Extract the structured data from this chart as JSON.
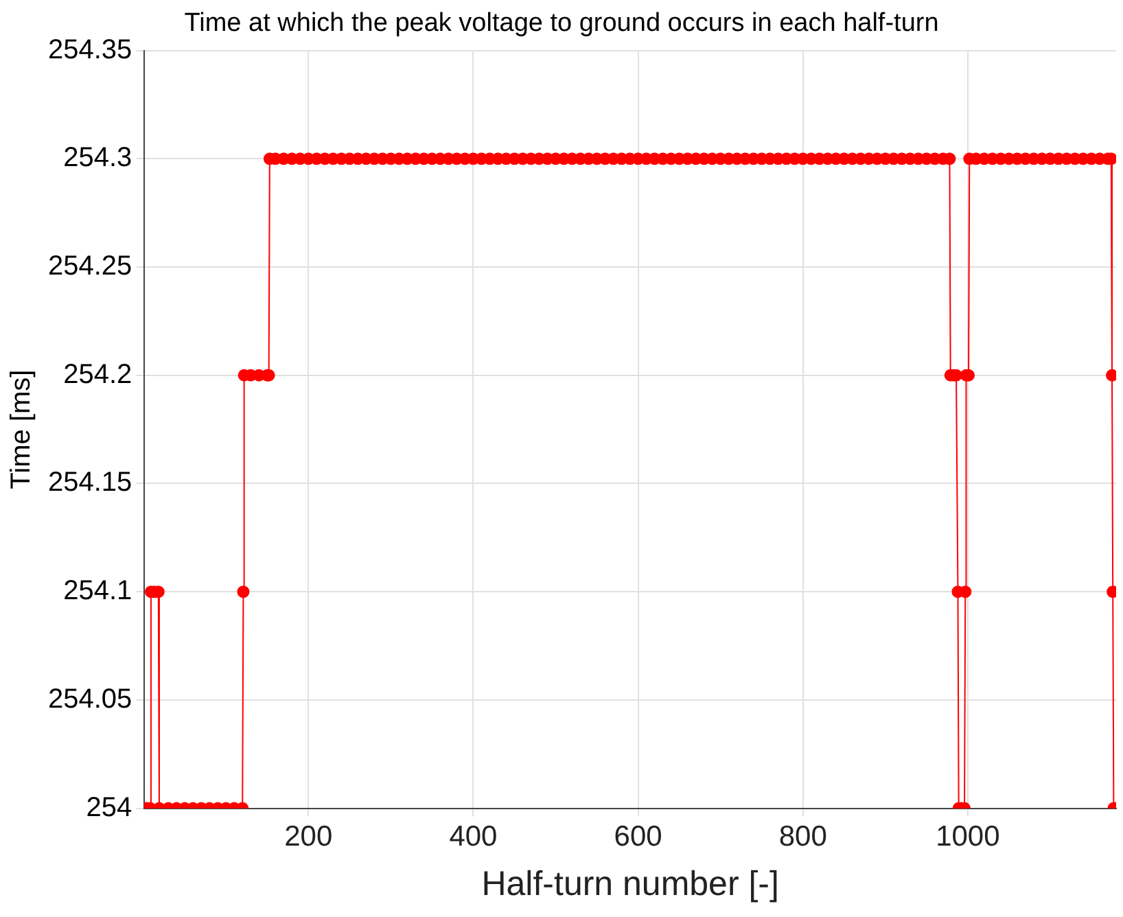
{
  "chart_data": {
    "type": "line",
    "title": "Time at which the peak voltage to ground occurs in each half-turn",
    "xlabel": "Half-turn number [-]",
    "ylabel": "Time [ms]",
    "x": [
      1,
      4,
      8,
      9,
      13,
      18,
      19,
      30,
      40,
      50,
      60,
      70,
      80,
      90,
      100,
      110,
      120,
      121,
      122,
      130,
      140,
      150,
      152,
      153,
      160,
      170,
      180,
      190,
      200,
      210,
      220,
      230,
      240,
      250,
      260,
      270,
      280,
      290,
      300,
      310,
      320,
      330,
      340,
      350,
      360,
      370,
      380,
      390,
      400,
      410,
      420,
      430,
      440,
      450,
      460,
      470,
      480,
      490,
      500,
      510,
      520,
      530,
      540,
      550,
      560,
      570,
      580,
      590,
      600,
      610,
      620,
      630,
      640,
      650,
      660,
      670,
      680,
      690,
      700,
      710,
      720,
      730,
      740,
      750,
      760,
      770,
      780,
      790,
      800,
      810,
      820,
      830,
      840,
      850,
      860,
      870,
      880,
      890,
      900,
      910,
      920,
      930,
      940,
      950,
      960,
      970,
      978,
      979,
      983,
      986,
      988,
      989,
      992,
      996,
      997,
      998,
      1001,
      1002,
      1010,
      1020,
      1030,
      1040,
      1050,
      1060,
      1070,
      1080,
      1090,
      1100,
      1110,
      1120,
      1130,
      1140,
      1150,
      1160,
      1170,
      1174,
      1175,
      1176,
      1177,
      1180
    ],
    "values": [
      254,
      254,
      254,
      254.1,
      254.1,
      254.1,
      254,
      254,
      254,
      254,
      254,
      254,
      254,
      254,
      254,
      254,
      254,
      254.1,
      254.2,
      254.2,
      254.2,
      254.2,
      254.2,
      254.3,
      254.3,
      254.3,
      254.3,
      254.3,
      254.3,
      254.3,
      254.3,
      254.3,
      254.3,
      254.3,
      254.3,
      254.3,
      254.3,
      254.3,
      254.3,
      254.3,
      254.3,
      254.3,
      254.3,
      254.3,
      254.3,
      254.3,
      254.3,
      254.3,
      254.3,
      254.3,
      254.3,
      254.3,
      254.3,
      254.3,
      254.3,
      254.3,
      254.3,
      254.3,
      254.3,
      254.3,
      254.3,
      254.3,
      254.3,
      254.3,
      254.3,
      254.3,
      254.3,
      254.3,
      254.3,
      254.3,
      254.3,
      254.3,
      254.3,
      254.3,
      254.3,
      254.3,
      254.3,
      254.3,
      254.3,
      254.3,
      254.3,
      254.3,
      254.3,
      254.3,
      254.3,
      254.3,
      254.3,
      254.3,
      254.3,
      254.3,
      254.3,
      254.3,
      254.3,
      254.3,
      254.3,
      254.3,
      254.3,
      254.3,
      254.3,
      254.3,
      254.3,
      254.3,
      254.3,
      254.3,
      254.3,
      254.3,
      254.3,
      254.2,
      254.2,
      254.2,
      254.1,
      254,
      254,
      254,
      254.1,
      254.2,
      254.2,
      254.3,
      254.3,
      254.3,
      254.3,
      254.3,
      254.3,
      254.3,
      254.3,
      254.3,
      254.3,
      254.3,
      254.3,
      254.3,
      254.3,
      254.3,
      254.3,
      254.3,
      254.3,
      254.3,
      254.2,
      254.1,
      254,
      254
    ],
    "color": "#ff0000",
    "marker": "circle",
    "xlim": [
      1,
      1180
    ],
    "xticks": [
      200,
      400,
      600,
      800,
      1000
    ],
    "ylim": [
      254,
      254.35
    ],
    "yticks": [
      254,
      254.05,
      254.1,
      254.15,
      254.2,
      254.25,
      254.3,
      254.35
    ],
    "grid": true
  }
}
